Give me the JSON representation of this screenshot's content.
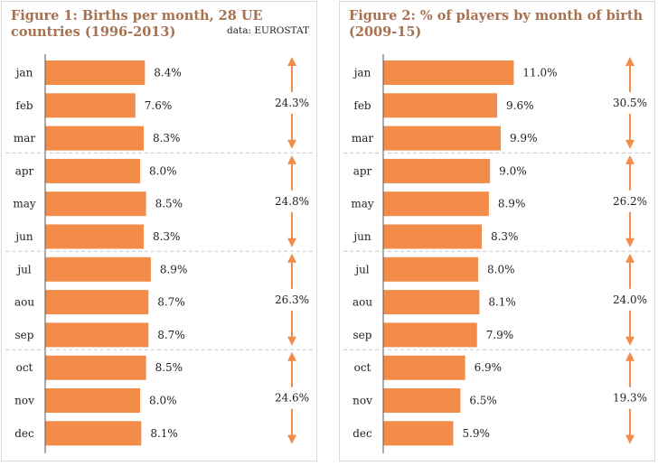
{
  "chart_data": [
    {
      "type": "bar",
      "orientation": "horizontal",
      "title": "Figure 1: Births per month, 28 UE countries (1996-2013)",
      "source": "data: EUROSTAT",
      "categories": [
        "jan",
        "feb",
        "mar",
        "apr",
        "may",
        "jun",
        "jul",
        "aou",
        "sep",
        "oct",
        "nov",
        "dec"
      ],
      "values": [
        8.4,
        7.6,
        8.3,
        8.0,
        8.5,
        8.3,
        8.9,
        8.7,
        8.7,
        8.5,
        8.0,
        8.1
      ],
      "value_labels": [
        "8.4%",
        "7.6%",
        "8.3%",
        "8.0%",
        "8.5%",
        "8.3%",
        "8.9%",
        "8.7%",
        "8.7%",
        "8.5%",
        "8.0%",
        "8.1%"
      ],
      "bar_color": "#f28c48",
      "xlim": [
        0,
        11.5
      ],
      "quarters": [
        {
          "months": [
            "jan",
            "feb",
            "mar"
          ],
          "total_label": "24.3%"
        },
        {
          "months": [
            "apr",
            "may",
            "jun"
          ],
          "total_label": "24.8%"
        },
        {
          "months": [
            "jul",
            "aou",
            "sep"
          ],
          "total_label": "26.3%"
        },
        {
          "months": [
            "oct",
            "nov",
            "dec"
          ],
          "total_label": "24.6%"
        }
      ]
    },
    {
      "type": "bar",
      "orientation": "horizontal",
      "title": "Figure 2: % of players by month of birth (2009-15)",
      "source": "",
      "categories": [
        "jan",
        "feb",
        "mar",
        "apr",
        "may",
        "jun",
        "jul",
        "aou",
        "sep",
        "oct",
        "nov",
        "dec"
      ],
      "values": [
        11.0,
        9.6,
        9.9,
        9.0,
        8.9,
        8.3,
        8.0,
        8.1,
        7.9,
        6.9,
        6.5,
        5.9
      ],
      "value_labels": [
        "11.0%",
        "9.6%",
        "9.9%",
        "9.0%",
        "8.9%",
        "8.3%",
        "8.0%",
        "8.1%",
        "7.9%",
        "6.9%",
        "6.5%",
        "5.9%"
      ],
      "bar_color": "#f28c48",
      "xlim": [
        0,
        11.5
      ],
      "quarters": [
        {
          "months": [
            "jan",
            "feb",
            "mar"
          ],
          "total_label": "30.5%"
        },
        {
          "months": [
            "apr",
            "may",
            "jun"
          ],
          "total_label": "26.2%"
        },
        {
          "months": [
            "jul",
            "aou",
            "sep"
          ],
          "total_label": "24.0%"
        },
        {
          "months": [
            "oct",
            "nov",
            "dec"
          ],
          "total_label": "19.3%"
        }
      ]
    }
  ]
}
